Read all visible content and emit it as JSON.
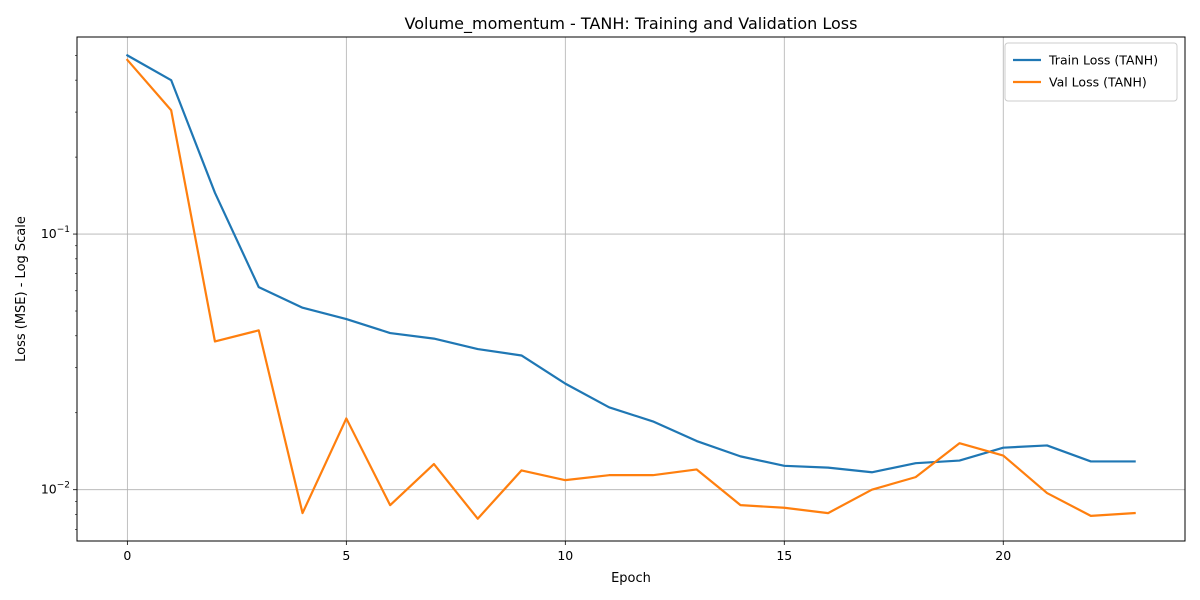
{
  "chart_data": {
    "type": "line",
    "title": "Volume_momentum - TANH: Training and Validation Loss",
    "xlabel": "Epoch",
    "ylabel": "Loss (MSE) - Log Scale",
    "y_scale": "log",
    "grid": true,
    "legend_position": "top-right",
    "x": [
      0,
      1,
      2,
      3,
      4,
      5,
      6,
      7,
      8,
      9,
      10,
      11,
      12,
      13,
      14,
      15,
      16,
      17,
      18,
      19,
      20,
      21,
      22,
      23
    ],
    "xlim": [
      -1.15,
      24.15
    ],
    "ylim": [
      0.0063,
      0.59
    ],
    "x_ticks": [
      0,
      5,
      10,
      15,
      20
    ],
    "x_tick_labels": [
      "0",
      "5",
      "10",
      "15",
      "20"
    ],
    "y_ticks": [
      0.1,
      0.01
    ],
    "y_tick_labels": [
      {
        "base": "10",
        "exp": "−1"
      },
      {
        "base": "10",
        "exp": "−2"
      }
    ],
    "series": [
      {
        "name": "Train Loss (TANH)",
        "color": "#1f77b4",
        "values": [
          0.5,
          0.4,
          0.145,
          0.062,
          0.0515,
          0.0465,
          0.041,
          0.039,
          0.0355,
          0.0335,
          0.026,
          0.021,
          0.0185,
          0.0155,
          0.0135,
          0.0124,
          0.0122,
          0.0117,
          0.0127,
          0.013,
          0.0146,
          0.0149,
          0.0129,
          0.0129
        ]
      },
      {
        "name": "Val Loss (TANH)",
        "color": "#ff7f0e",
        "values": [
          0.48,
          0.305,
          0.038,
          0.042,
          0.0081,
          0.019,
          0.0087,
          0.0126,
          0.0077,
          0.0119,
          0.0109,
          0.0114,
          0.0114,
          0.012,
          0.0087,
          0.0085,
          0.0081,
          0.01,
          0.0112,
          0.0152,
          0.0136,
          0.0097,
          0.0079,
          0.0081
        ]
      }
    ]
  }
}
